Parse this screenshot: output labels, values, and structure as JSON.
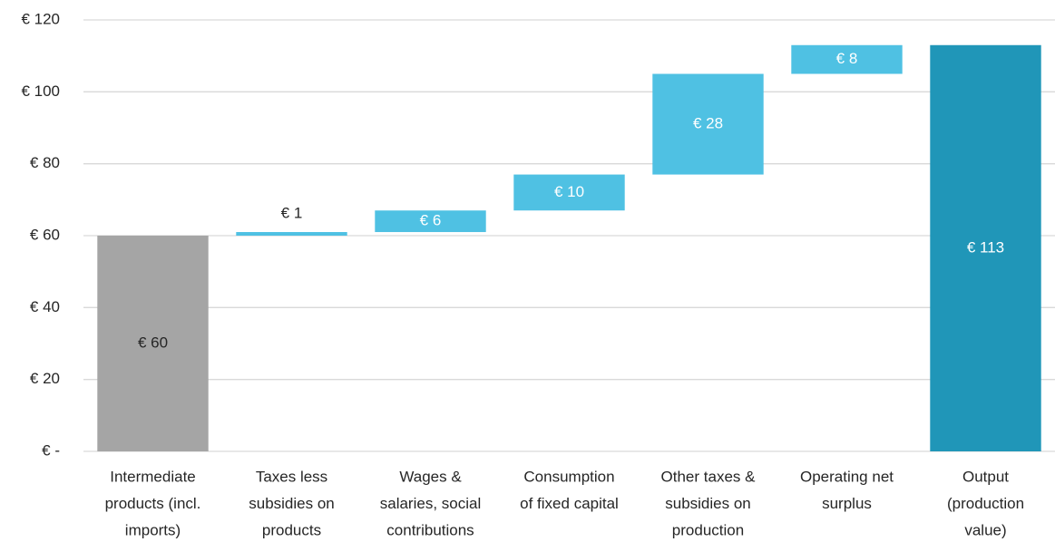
{
  "chart_data": {
    "type": "waterfall",
    "categories": [
      [
        "Intermediate",
        "products (incl.",
        "imports)"
      ],
      [
        "Taxes less",
        "subsidies on",
        "products"
      ],
      [
        "Wages &",
        "salaries, social",
        "contributions"
      ],
      [
        "Consumption",
        "of fixed capital"
      ],
      [
        "Other taxes &",
        "subsidies on",
        "production"
      ],
      [
        "Operating net",
        "surplus"
      ],
      [
        "Output",
        "(production",
        "value)"
      ]
    ],
    "values": [
      60,
      1,
      6,
      10,
      28,
      8,
      113
    ],
    "value_labels": [
      "€ 60",
      "€ 1",
      "€ 6",
      "€ 10",
      "€ 28",
      "€ 8",
      "€ 113"
    ],
    "measures": [
      "absolute",
      "relative",
      "relative",
      "relative",
      "relative",
      "relative",
      "total"
    ],
    "colors": [
      "#a5a5a5",
      "#4fc1e3",
      "#4fc1e3",
      "#4fc1e3",
      "#4fc1e3",
      "#4fc1e3",
      "#2096b8"
    ],
    "ylim": [
      0,
      120
    ],
    "yticks": [
      {
        "value": 0,
        "label": "€ -"
      },
      {
        "value": 20,
        "label": "€ 20"
      },
      {
        "value": 40,
        "label": "€ 40"
      },
      {
        "value": 60,
        "label": "€ 60"
      },
      {
        "value": 80,
        "label": "€ 80"
      },
      {
        "value": 100,
        "label": "€ 100"
      },
      {
        "value": 120,
        "label": "€ 120"
      }
    ],
    "grid": true
  }
}
